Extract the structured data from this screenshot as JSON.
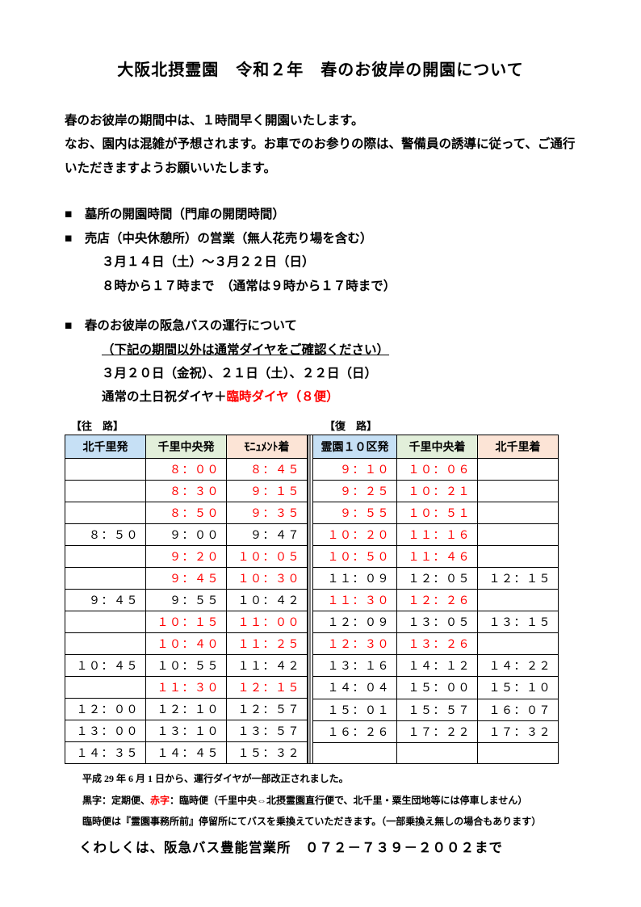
{
  "title": "大阪北摂霊園　令和２年　春のお彼岸の開園について",
  "intro": {
    "l1": "春のお彼岸の期間中は、１時間早く開園いたします。",
    "l2": "なお、園内は混雑が予想されます。お車でのお参りの際は、警備員の誘導に従って、ご通行いただきますようお願いいたします。"
  },
  "sec1": {
    "b1": "■　墓所の開園時間（門扉の開閉時間）",
    "b2": "■　売店（中央休憩所）の営業（無人花売り場を含む）",
    "l1": "３月１４日（土）～３月２２日（日）",
    "l2": "８時から１７時まで　（通常は９時から１７時まで）"
  },
  "sec2": {
    "b1": "■　春のお彼岸の阪急バスの運行について",
    "u1": "（下記の期間以外は通常ダイヤをご確認ください）",
    "l1": "３月２０日（金祝）、２１日（土）、２２日（日）",
    "l2a": "通常の土日祝ダイヤ＋",
    "l2b": "臨時ダイヤ（８便）"
  },
  "labels": {
    "outbound": "【往　路】",
    "inbound": "【復　路】"
  },
  "headers": {
    "out": [
      "北千里発",
      "千里中央発",
      "ﾓﾆｭﾒﾝﾄ着"
    ],
    "in": [
      "霊園１０区発",
      "千里中央着",
      "北千里着"
    ]
  },
  "out": [
    {
      "c1": "",
      "c2": "８：００",
      "c3": "８：４５",
      "r": [
        false,
        true,
        true
      ]
    },
    {
      "c1": "",
      "c2": "８：３０",
      "c3": "９：１５",
      "r": [
        false,
        true,
        true
      ]
    },
    {
      "c1": "",
      "c2": "８：５０",
      "c3": "９：３５",
      "r": [
        false,
        true,
        true
      ]
    },
    {
      "c1": "８：５０",
      "c2": "９：００",
      "c3": "９：４７",
      "r": [
        false,
        false,
        false
      ]
    },
    {
      "c1": "",
      "c2": "９：２０",
      "c3": "１０：０５",
      "r": [
        false,
        true,
        true
      ]
    },
    {
      "c1": "",
      "c2": "９：４５",
      "c3": "１０：３０",
      "r": [
        false,
        true,
        true
      ]
    },
    {
      "c1": "９：４５",
      "c2": "９：５５",
      "c3": "１０：４２",
      "r": [
        false,
        false,
        false
      ]
    },
    {
      "c1": "",
      "c2": "１０：１５",
      "c3": "１１：００",
      "r": [
        false,
        true,
        true
      ]
    },
    {
      "c1": "",
      "c2": "１０：４０",
      "c3": "１１：２５",
      "r": [
        false,
        true,
        true
      ]
    },
    {
      "c1": "１０：４５",
      "c2": "１０：５５",
      "c3": "１１：４２",
      "r": [
        false,
        false,
        false
      ]
    },
    {
      "c1": "",
      "c2": "１１：３０",
      "c3": "１２：１５",
      "r": [
        false,
        true,
        true
      ]
    },
    {
      "c1": "１２：００",
      "c2": "１２：１０",
      "c3": "１２：５７",
      "r": [
        false,
        false,
        false
      ]
    },
    {
      "c1": "１３：００",
      "c2": "１３：１０",
      "c3": "１３：５７",
      "r": [
        false,
        false,
        false
      ]
    },
    {
      "c1": "１４：３５",
      "c2": "１４：４５",
      "c3": "１５：３２",
      "r": [
        false,
        false,
        false
      ]
    }
  ],
  "in": [
    {
      "c1": "９：１０",
      "c2": "１０：０６",
      "c3": "",
      "r": [
        true,
        true,
        false
      ]
    },
    {
      "c1": "９：２５",
      "c2": "１０：２１",
      "c3": "",
      "r": [
        true,
        true,
        false
      ]
    },
    {
      "c1": "９：５５",
      "c2": "１０：５１",
      "c3": "",
      "r": [
        true,
        true,
        false
      ]
    },
    {
      "c1": "１０：２０",
      "c2": "１１：１６",
      "c3": "",
      "r": [
        true,
        true,
        false
      ]
    },
    {
      "c1": "１０：５０",
      "c2": "１１：４６",
      "c3": "",
      "r": [
        true,
        true,
        false
      ]
    },
    {
      "c1": "１１：０９",
      "c2": "１２：０５",
      "c3": "１２：１５",
      "r": [
        false,
        false,
        false
      ]
    },
    {
      "c1": "１１：３０",
      "c2": "１２：２６",
      "c3": "",
      "r": [
        true,
        true,
        false
      ]
    },
    {
      "c1": "１２：０９",
      "c2": "１３：０５",
      "c3": "１３：１５",
      "r": [
        false,
        false,
        false
      ]
    },
    {
      "c1": "１２：３０",
      "c2": "１３：２６",
      "c3": "",
      "r": [
        true,
        true,
        false
      ]
    },
    {
      "c1": "１３：１６",
      "c2": "１４：１２",
      "c3": "１４：２２",
      "r": [
        false,
        false,
        false
      ]
    },
    {
      "c1": "１４：０４",
      "c2": "１５：００",
      "c3": "１５：１０",
      "r": [
        false,
        false,
        false
      ]
    },
    {
      "c1": "１５：０１",
      "c2": "１５：５７",
      "c3": "１６：０７",
      "r": [
        false,
        false,
        false
      ]
    },
    {
      "c1": "１６：２６",
      "c2": "１７：２２",
      "c3": "１７：３２",
      "r": [
        false,
        false,
        false
      ]
    },
    {
      "c1": "",
      "c2": "",
      "c3": "",
      "r": [
        false,
        false,
        false
      ]
    }
  ],
  "notes": {
    "n1": "平成 29 年 6 月 1 日から、運行ダイヤが一部改正されました。",
    "n2a": "黒字：定期便、",
    "n2b": "赤字",
    "n2c": "：臨時便（千里中央⇔北摂霊園直行便で、北千里・粟生団地等には停車しません）",
    "n3": "臨時便は『霊園事務所前』停留所にてバスを乗換えていただきます。（一部乗換え無しの場合もあります）"
  },
  "contact": "くわしくは、阪急バス豊能営業所　０７２－７３９－２００２まで",
  "colors": {
    "red": "#ff0000",
    "header_blue": "#c6e0f5",
    "header_green": "#e2efda",
    "header_orange": "#fce4d6"
  }
}
